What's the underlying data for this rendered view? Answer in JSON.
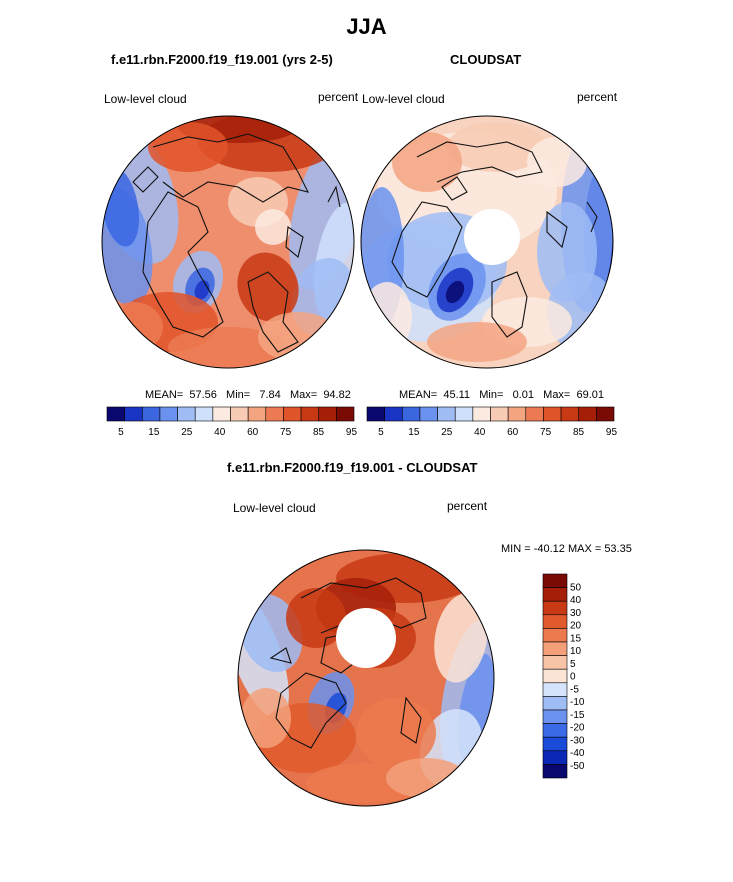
{
  "title": "JJA",
  "colors": {
    "abs_palette": [
      "#08086e",
      "#1a34c4",
      "#3b66e0",
      "#6a92ee",
      "#9fbcf5",
      "#cfe0fb",
      "#fbeae0",
      "#f7cbb4",
      "#f3a582",
      "#ec7a52",
      "#e0542a",
      "#c83a14",
      "#a51f08",
      "#7a0a04"
    ],
    "diff_palette": [
      "#08086e",
      "#0a28b4",
      "#1a4ad8",
      "#3b6ae6",
      "#6a92ee",
      "#9fbcf5",
      "#d6e4fb",
      "#fbe4d6",
      "#f7c4a8",
      "#f3a07a",
      "#ec7a4e",
      "#e05a2c",
      "#c83a14",
      "#a51f08",
      "#7a0a04"
    ],
    "coast": "#111111"
  },
  "panels": {
    "model": {
      "title": "f.e11.rbn.F2000.f19_f19.001 (yrs 2-5)",
      "variable": "Low-level cloud",
      "units": "percent",
      "mean_label": "MEAN=",
      "mean": "57.56",
      "min_label": "Min=",
      "min": "7.84",
      "max_label": "Max=",
      "max": "94.82"
    },
    "obs": {
      "title": "CLOUDSAT",
      "variable": "Low-level cloud",
      "units": "percent",
      "mean_label": "MEAN=",
      "mean": "45.11",
      "min_label": "Min=",
      "min": "0.01",
      "max_label": "Max=",
      "max": "69.01"
    },
    "diff": {
      "title": "f.e11.rbn.F2000.f19_f19.001 - CLOUDSAT",
      "variable": "Low-level cloud",
      "units": "percent",
      "minmax": "MIN = -40.12 MAX =  53.35"
    }
  },
  "chart_data": [
    {
      "type": "heatmap",
      "projection": "north polar stereographic",
      "title": "f.e11.rbn.F2000.f19_f19.001 (yrs 2-5)",
      "variable": "Low-level cloud",
      "units": "percent",
      "stats": {
        "mean": 57.56,
        "min": 7.84,
        "max": 94.82
      },
      "colorbar_levels": [
        5,
        10,
        15,
        20,
        25,
        30,
        40,
        50,
        60,
        70,
        75,
        80,
        85,
        90,
        95
      ],
      "colorbar_tick_labels": [
        "5",
        "15",
        "25",
        "40",
        "60",
        "75",
        "85",
        "95"
      ]
    },
    {
      "type": "heatmap",
      "projection": "north polar stereographic",
      "title": "CLOUDSAT",
      "variable": "Low-level cloud",
      "units": "percent",
      "stats": {
        "mean": 45.11,
        "min": 0.01,
        "max": 69.01
      },
      "colorbar_levels": [
        5,
        10,
        15,
        20,
        25,
        30,
        40,
        50,
        60,
        70,
        75,
        80,
        85,
        90,
        95
      ],
      "colorbar_tick_labels": [
        "5",
        "15",
        "25",
        "40",
        "60",
        "75",
        "85",
        "95"
      ]
    },
    {
      "type": "heatmap",
      "projection": "north polar stereographic",
      "title": "f.e11.rbn.F2000.f19_f19.001 - CLOUDSAT",
      "variable": "Low-level cloud",
      "units": "percent",
      "stats": {
        "min": -40.12,
        "max": 53.35
      },
      "colorbar_levels": [
        -50,
        -40,
        -30,
        -20,
        -15,
        -10,
        -5,
        0,
        5,
        10,
        15,
        20,
        30,
        40,
        50
      ],
      "colorbar_tick_labels": [
        "-50",
        "-40",
        "-30",
        "-20",
        "-15",
        "-10",
        "-5",
        "0",
        "5",
        "10",
        "15",
        "20",
        "30",
        "40",
        "50"
      ]
    }
  ]
}
